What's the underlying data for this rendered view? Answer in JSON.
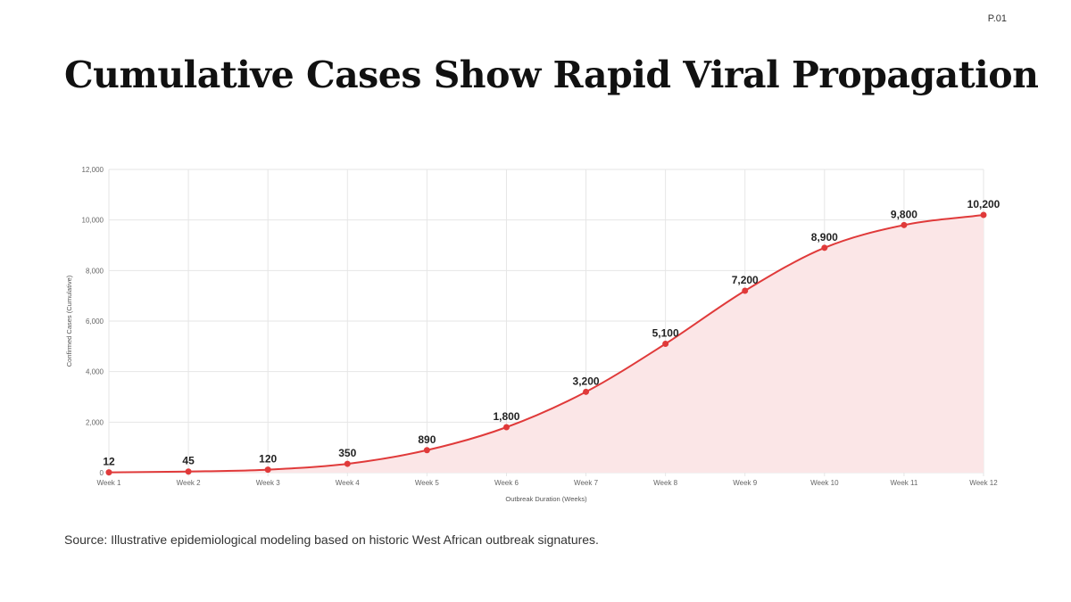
{
  "page": {
    "number": "P.01",
    "title": "Cumulative Cases Show Rapid Viral Propagation",
    "source": "Source: Illustrative epidemiological modeling based on historic West African outbreak signatures."
  },
  "colors": {
    "line": "#e03a3a",
    "fill": "#fbe6e7",
    "point": "#e03a3a",
    "grid": "#e6e6e6"
  },
  "chart_data": {
    "type": "area",
    "title": "",
    "xlabel": "Outbreak Duration (Weeks)",
    "ylabel": "Confirmed Cases (Cumulative)",
    "categories": [
      "Week 1",
      "Week 2",
      "Week 3",
      "Week 4",
      "Week 5",
      "Week 6",
      "Week 7",
      "Week 8",
      "Week 9",
      "Week 10",
      "Week 11",
      "Week 12"
    ],
    "values": [
      12,
      45,
      120,
      350,
      890,
      1800,
      3200,
      5100,
      7200,
      8900,
      9800,
      10200
    ],
    "value_labels": [
      "12",
      "45",
      "120",
      "350",
      "890",
      "1,800",
      "3,200",
      "5,100",
      "7,200",
      "8,900",
      "9,800",
      "10,200"
    ],
    "ylim": [
      0,
      12000
    ],
    "yticks": [
      0,
      2000,
      4000,
      6000,
      8000,
      10000,
      12000
    ],
    "ytick_labels": [
      "0",
      "2,000",
      "4,000",
      "6,000",
      "8,000",
      "10,000",
      "12,000"
    ],
    "grid": true,
    "legend": "none",
    "smooth": true
  }
}
